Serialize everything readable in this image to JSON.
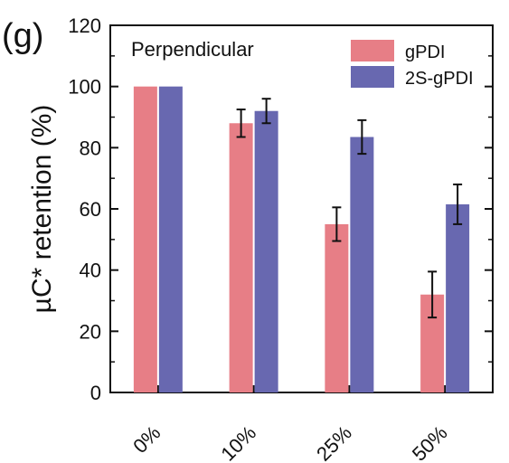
{
  "panel_label": "(g)",
  "chart_data": {
    "type": "bar",
    "annotation": "Perpendicular",
    "categories": [
      "0%",
      "10%",
      "25%",
      "50%"
    ],
    "series": [
      {
        "name": "gPDI",
        "color": "#e77e86",
        "values": [
          100,
          88,
          55,
          32
        ],
        "errors": [
          0,
          4.5,
          5.5,
          7.5
        ]
      },
      {
        "name": "2S-gPDI",
        "color": "#6868b0",
        "values": [
          100,
          92,
          83.5,
          61.5
        ],
        "errors": [
          0,
          4,
          5.5,
          6.5
        ]
      }
    ],
    "ylabel": "µC* retention (%)",
    "ylim": [
      0,
      120
    ],
    "yticks": [
      0,
      20,
      40,
      60,
      80,
      100,
      120
    ],
    "legend_position": "top-right",
    "grid": false
  }
}
